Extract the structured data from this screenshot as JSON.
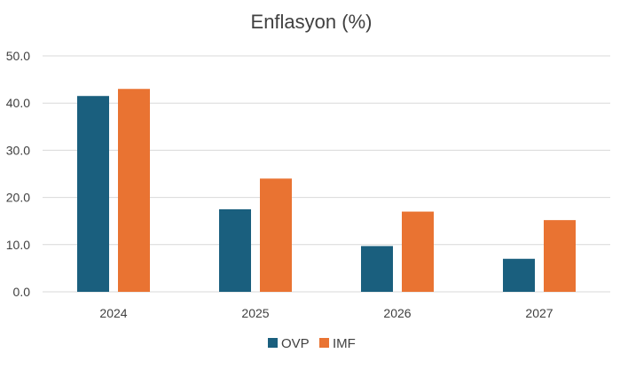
{
  "chart_data": {
    "type": "bar",
    "title": "Enflasyon (%)",
    "xlabel": "",
    "ylabel": "",
    "categories": [
      "2024",
      "2025",
      "2026",
      "2027"
    ],
    "series": [
      {
        "name": "OVP",
        "color": "#1a5f7e",
        "values": [
          41.5,
          17.5,
          9.7,
          7.0
        ]
      },
      {
        "name": "IMF",
        "color": "#e97332",
        "values": [
          43.0,
          24.0,
          17.0,
          15.2
        ]
      }
    ],
    "ylim": [
      0,
      50
    ],
    "y_ticks": [
      "0.0",
      "10.0",
      "20.0",
      "30.0",
      "40.0",
      "50.0"
    ],
    "grid": true,
    "legend_position": "bottom"
  }
}
